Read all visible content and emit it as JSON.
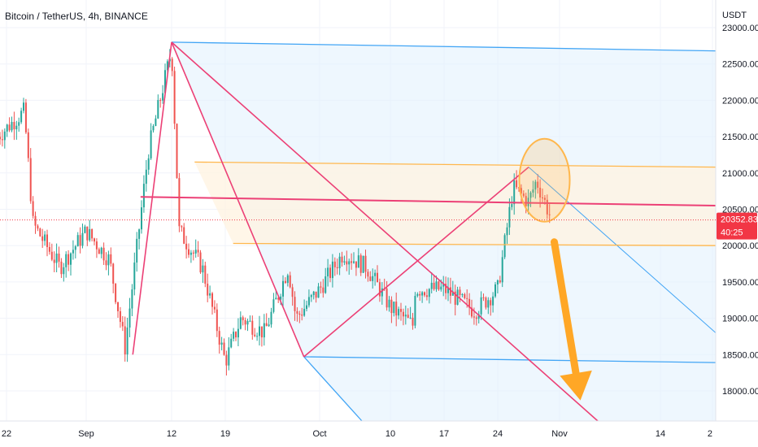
{
  "header": {
    "symbol_title": "Bitcoin / TetherUS, 4h, BINANCE"
  },
  "price_axis": {
    "unit_label": "USDT"
  },
  "price_badge": {
    "price": "20352.83",
    "countdown": "40:25",
    "color": "#f23645"
  },
  "colors": {
    "bull": "#26a69a",
    "bear": "#ef5350",
    "channel_blue": "#42a5f5",
    "channel_orange": "#ffb74d",
    "pink_line": "#ec4076",
    "arrow_orange": "#ffa726"
  },
  "chart_data": {
    "type": "candlestick",
    "title": "",
    "xlabel": "",
    "ylabel": "",
    "ylim": [
      17650,
      23000
    ],
    "y_ticks": [
      "23000.00",
      "22500.00",
      "22000.00",
      "21500.00",
      "21000.00",
      "20500.00",
      "20000.00",
      "19500.00",
      "19000.00",
      "18500.00",
      "18000.00"
    ],
    "x_ticks": [
      "22",
      "Sep",
      "12",
      "19",
      "Oct",
      "10",
      "17",
      "24",
      "Nov",
      "14",
      "2"
    ],
    "grid": true,
    "last_price": 20352.83,
    "price_path": [
      {
        "t": "Aug 22",
        "price": 21500
      },
      {
        "t": "Aug 25",
        "price": 21850
      },
      {
        "t": "Aug 26",
        "price": 20300
      },
      {
        "t": "Aug 29",
        "price": 19700
      },
      {
        "t": "Sep 1",
        "price": 20200
      },
      {
        "t": "Sep 4",
        "price": 19800
      },
      {
        "t": "Sep 6",
        "price": 18600
      },
      {
        "t": "Sep 9",
        "price": 21300
      },
      {
        "t": "Sep 12",
        "price": 22700
      },
      {
        "t": "Sep 13",
        "price": 20200
      },
      {
        "t": "Sep 16",
        "price": 19700
      },
      {
        "t": "Sep 19",
        "price": 18400
      },
      {
        "t": "Sep 21",
        "price": 19000
      },
      {
        "t": "Sep 24",
        "price": 18800
      },
      {
        "t": "Sep 27",
        "price": 19700
      },
      {
        "t": "Sep 28",
        "price": 19000
      },
      {
        "t": "Oct 1",
        "price": 19400
      },
      {
        "t": "Oct 4",
        "price": 19900
      },
      {
        "t": "Oct 7",
        "price": 19700
      },
      {
        "t": "Oct 10",
        "price": 19150
      },
      {
        "t": "Oct 13",
        "price": 18900
      },
      {
        "t": "Oct 13",
        "price": 19400
      },
      {
        "t": "Oct 17",
        "price": 19400
      },
      {
        "t": "Oct 21",
        "price": 19100
      },
      {
        "t": "Oct 24",
        "price": 19400
      },
      {
        "t": "Oct 25",
        "price": 20100
      },
      {
        "t": "Oct 26",
        "price": 20800
      },
      {
        "t": "Oct 28",
        "price": 20600
      },
      {
        "t": "Oct 29",
        "price": 20900
      },
      {
        "t": "Oct 31",
        "price": 20350
      }
    ],
    "annotations": {
      "pitchfork_blue": "Andrews pitchfork anchored at the Sep 12 high, Sep 29 low",
      "pitchfork_orange": "Pitchfork channel band around 20000 to 21150",
      "horizontal_line_pink": 20600,
      "arrow_down": "Projected move from about 20100 toward 17900"
    }
  }
}
